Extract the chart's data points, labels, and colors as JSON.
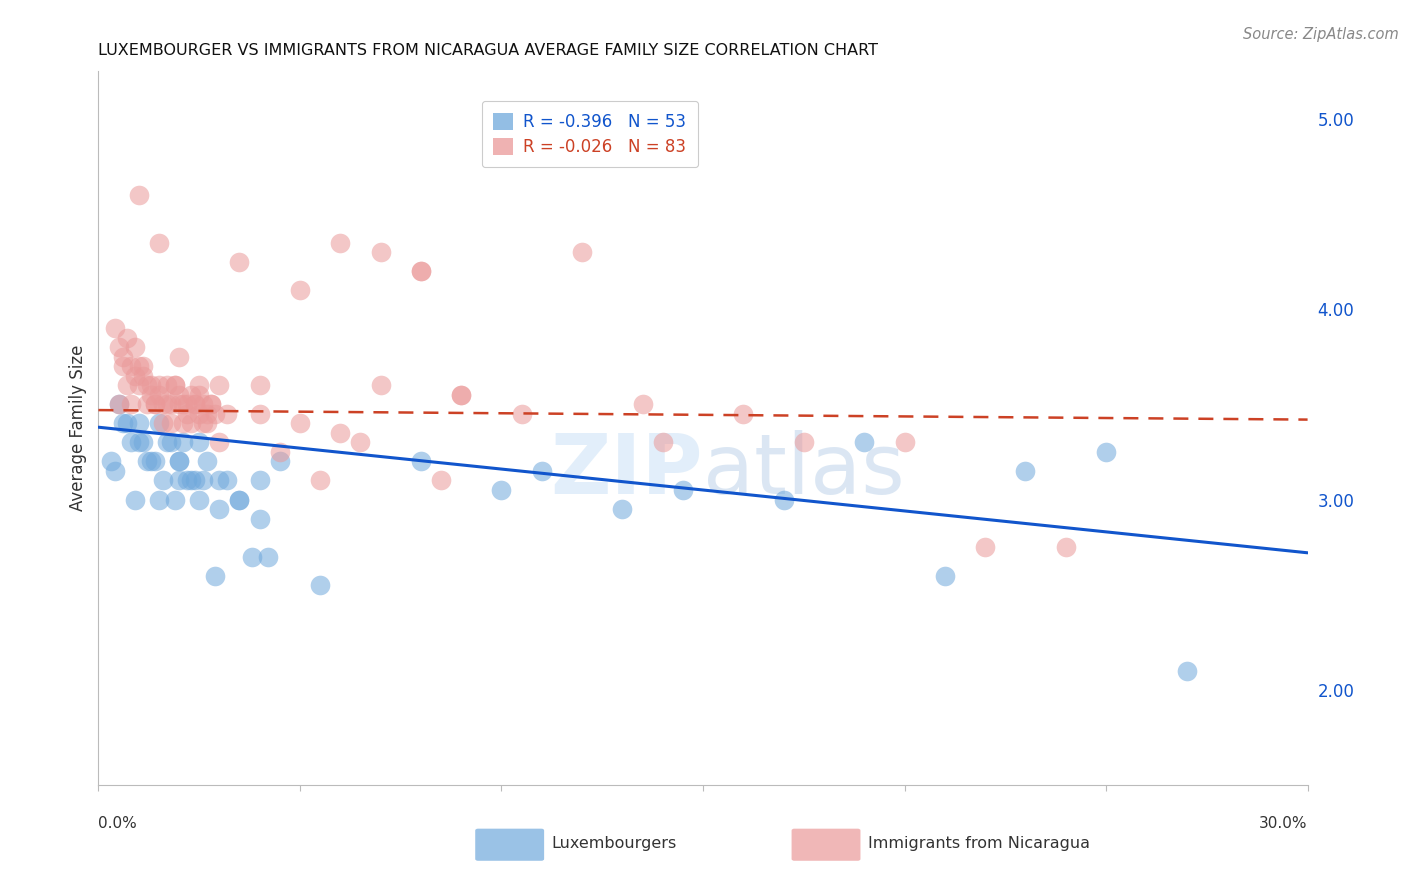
{
  "title": "LUXEMBOURGER VS IMMIGRANTS FROM NICARAGUA AVERAGE FAMILY SIZE CORRELATION CHART",
  "source": "Source: ZipAtlas.com",
  "ylabel": "Average Family Size",
  "right_yticks": [
    2.0,
    3.0,
    4.0,
    5.0
  ],
  "watermark": "ZIPatlas",
  "blue_R": "-0.396",
  "blue_N": "53",
  "pink_R": "-0.026",
  "pink_N": "83",
  "blue_color": "#6fa8dc",
  "pink_color": "#ea9999",
  "blue_line_color": "#1155cc",
  "pink_line_color": "#cc4125",
  "blue_scatter_x": [
    0.8,
    1.2,
    1.5,
    1.8,
    2.0,
    2.2,
    2.5,
    0.5,
    0.7,
    1.0,
    1.3,
    1.6,
    1.9,
    2.1,
    2.4,
    2.7,
    3.0,
    3.5,
    4.0,
    4.5,
    0.6,
    0.9,
    1.1,
    1.4,
    1.7,
    2.0,
    2.3,
    2.6,
    2.9,
    3.2,
    3.8,
    4.2,
    5.5,
    8.0,
    10.0,
    11.0,
    13.0,
    14.5,
    17.0,
    19.0,
    21.0,
    23.0,
    25.0,
    27.0,
    0.3,
    0.4,
    1.0,
    1.5,
    2.0,
    2.5,
    3.0,
    3.5,
    4.0
  ],
  "blue_scatter_y": [
    3.3,
    3.2,
    3.4,
    3.3,
    3.2,
    3.1,
    3.3,
    3.5,
    3.4,
    3.3,
    3.2,
    3.1,
    3.0,
    3.3,
    3.1,
    3.2,
    3.1,
    3.0,
    3.1,
    3.2,
    3.4,
    3.0,
    3.3,
    3.2,
    3.3,
    3.2,
    3.1,
    3.1,
    2.6,
    3.1,
    2.7,
    2.7,
    2.55,
    3.2,
    3.05,
    3.15,
    2.95,
    3.05,
    3.0,
    3.3,
    2.6,
    3.15,
    3.25,
    2.1,
    3.2,
    3.15,
    3.4,
    3.0,
    3.1,
    3.0,
    2.95,
    3.0,
    2.9
  ],
  "pink_scatter_x": [
    0.5,
    0.6,
    0.7,
    0.8,
    0.9,
    1.0,
    1.1,
    1.2,
    1.3,
    1.4,
    1.5,
    1.6,
    1.7,
    1.8,
    1.9,
    2.0,
    2.1,
    2.2,
    2.3,
    2.4,
    2.5,
    2.6,
    2.7,
    2.8,
    0.4,
    0.5,
    0.6,
    0.7,
    0.8,
    0.9,
    1.0,
    1.1,
    1.2,
    1.3,
    1.4,
    1.5,
    1.6,
    1.7,
    1.8,
    1.9,
    2.0,
    2.1,
    2.2,
    2.3,
    2.4,
    2.5,
    2.6,
    2.7,
    2.8,
    2.9,
    3.5,
    4.0,
    5.0,
    6.0,
    7.0,
    8.0,
    9.0,
    12.0,
    14.0,
    16.0,
    17.5,
    20.0,
    22.0,
    24.0,
    3.0,
    3.2,
    4.5,
    5.5,
    6.5,
    8.5,
    10.5,
    13.5,
    1.0,
    1.5,
    2.0,
    2.5,
    3.0,
    4.0,
    5.0,
    6.0,
    7.0,
    8.0,
    9.0
  ],
  "pink_scatter_y": [
    3.5,
    3.7,
    3.6,
    3.5,
    3.8,
    3.6,
    3.7,
    3.5,
    3.6,
    3.5,
    3.6,
    3.4,
    3.5,
    3.4,
    3.6,
    3.5,
    3.4,
    3.5,
    3.4,
    3.5,
    3.6,
    3.5,
    3.4,
    3.5,
    3.9,
    3.8,
    3.75,
    3.85,
    3.7,
    3.65,
    3.7,
    3.65,
    3.6,
    3.55,
    3.5,
    3.55,
    3.5,
    3.6,
    3.5,
    3.6,
    3.55,
    3.5,
    3.45,
    3.55,
    3.5,
    3.45,
    3.4,
    3.45,
    3.5,
    3.45,
    4.25,
    3.6,
    4.1,
    4.35,
    4.3,
    4.2,
    3.55,
    4.3,
    3.3,
    3.45,
    3.3,
    3.3,
    2.75,
    2.75,
    3.3,
    3.45,
    3.25,
    3.1,
    3.3,
    3.1,
    3.45,
    3.5,
    4.6,
    4.35,
    3.75,
    3.55,
    3.6,
    3.45,
    3.4,
    3.35,
    3.6,
    4.2,
    3.55
  ],
  "blue_trend_y_start": 3.38,
  "blue_trend_y_end": 2.72,
  "pink_trend_y_start": 3.47,
  "pink_trend_y_end": 3.42,
  "xlim": [
    0.0,
    30.0
  ],
  "ylim": [
    1.5,
    5.25
  ],
  "grid_color": "#dddddd",
  "background_color": "#ffffff"
}
